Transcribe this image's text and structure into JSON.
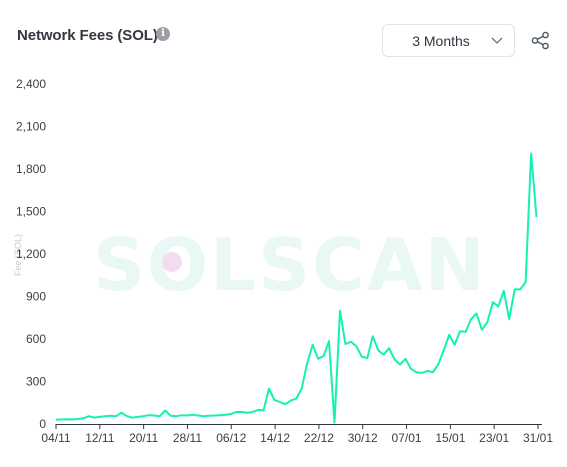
{
  "header": {
    "title": "Network Fees (SOL)",
    "info_icon": "info-icon",
    "period": {
      "selected": "3 Months",
      "icon": "chevron-down-icon"
    },
    "share_icon": "share-icon"
  },
  "watermark": {
    "text": "SOLSCAN",
    "color": "#e9f8f4",
    "dot_color": "#f4dcf0"
  },
  "chart_data": {
    "type": "line",
    "title": "Network Fees (SOL)",
    "xlabel": "",
    "ylabel": "Fee (SOL)",
    "ylim": [
      0,
      2400
    ],
    "yticks": [
      0,
      300,
      600,
      900,
      1200,
      1500,
      1800,
      2100,
      2400
    ],
    "ytick_labels": [
      "0",
      "300",
      "600",
      "900",
      "1,200",
      "1,500",
      "1,800",
      "2,100",
      "2,400"
    ],
    "xtick_labels": [
      "04/11",
      "12/11",
      "20/11",
      "28/11",
      "06/12",
      "14/12",
      "22/12",
      "30/12",
      "07/01",
      "15/01",
      "23/01",
      "31/01"
    ],
    "x_range": [
      "2023-11-04",
      "2024-02-01"
    ],
    "grid": false,
    "line_color": "#14f1b2",
    "axis_color": "#2f3640",
    "series": [
      {
        "name": "",
        "points": [
          [
            "2023-11-04",
            30
          ],
          [
            "2023-11-05",
            32
          ],
          [
            "2023-11-06",
            33
          ],
          [
            "2023-11-07",
            32
          ],
          [
            "2023-11-08",
            35
          ],
          [
            "2023-11-09",
            40
          ],
          [
            "2023-11-10",
            55
          ],
          [
            "2023-11-11",
            45
          ],
          [
            "2023-11-12",
            50
          ],
          [
            "2023-11-13",
            55
          ],
          [
            "2023-11-14",
            58
          ],
          [
            "2023-11-15",
            55
          ],
          [
            "2023-11-16",
            80
          ],
          [
            "2023-11-17",
            55
          ],
          [
            "2023-11-18",
            45
          ],
          [
            "2023-11-19",
            50
          ],
          [
            "2023-11-20",
            55
          ],
          [
            "2023-11-21",
            62
          ],
          [
            "2023-11-22",
            60
          ],
          [
            "2023-11-23",
            55
          ],
          [
            "2023-11-24",
            95
          ],
          [
            "2023-11-25",
            58
          ],
          [
            "2023-11-26",
            55
          ],
          [
            "2023-11-27",
            62
          ],
          [
            "2023-11-28",
            60
          ],
          [
            "2023-11-29",
            65
          ],
          [
            "2023-11-30",
            60
          ],
          [
            "2023-12-01",
            55
          ],
          [
            "2023-12-02",
            58
          ],
          [
            "2023-12-03",
            60
          ],
          [
            "2023-12-04",
            62
          ],
          [
            "2023-12-05",
            65
          ],
          [
            "2023-12-06",
            70
          ],
          [
            "2023-12-07",
            85
          ],
          [
            "2023-12-08",
            85
          ],
          [
            "2023-12-09",
            80
          ],
          [
            "2023-12-10",
            85
          ],
          [
            "2023-12-11",
            100
          ],
          [
            "2023-12-12",
            95
          ],
          [
            "2023-12-13",
            250
          ],
          [
            "2023-12-14",
            170
          ],
          [
            "2023-12-15",
            155
          ],
          [
            "2023-12-16",
            140
          ],
          [
            "2023-12-17",
            165
          ],
          [
            "2023-12-18",
            180
          ],
          [
            "2023-12-19",
            250
          ],
          [
            "2023-12-20",
            430
          ],
          [
            "2023-12-21",
            560
          ],
          [
            "2023-12-22",
            460
          ],
          [
            "2023-12-23",
            480
          ],
          [
            "2023-12-24",
            585
          ],
          [
            "2023-12-25",
            10
          ],
          [
            "2023-12-26",
            800
          ],
          [
            "2023-12-27",
            565
          ],
          [
            "2023-12-28",
            580
          ],
          [
            "2023-12-29",
            550
          ],
          [
            "2023-12-30",
            475
          ],
          [
            "2023-12-31",
            465
          ],
          [
            "2024-01-01",
            620
          ],
          [
            "2024-01-02",
            520
          ],
          [
            "2024-01-03",
            490
          ],
          [
            "2024-01-04",
            535
          ],
          [
            "2024-01-05",
            455
          ],
          [
            "2024-01-06",
            420
          ],
          [
            "2024-01-07",
            460
          ],
          [
            "2024-01-08",
            390
          ],
          [
            "2024-01-09",
            365
          ],
          [
            "2024-01-10",
            360
          ],
          [
            "2024-01-11",
            375
          ],
          [
            "2024-01-12",
            365
          ],
          [
            "2024-01-13",
            420
          ],
          [
            "2024-01-14",
            520
          ],
          [
            "2024-01-15",
            630
          ],
          [
            "2024-01-16",
            560
          ],
          [
            "2024-01-17",
            655
          ],
          [
            "2024-01-18",
            650
          ],
          [
            "2024-01-19",
            740
          ],
          [
            "2024-01-20",
            780
          ],
          [
            "2024-01-21",
            665
          ],
          [
            "2024-01-22",
            720
          ],
          [
            "2024-01-23",
            860
          ],
          [
            "2024-01-24",
            830
          ],
          [
            "2024-01-25",
            940
          ],
          [
            "2024-01-26",
            740
          ],
          [
            "2024-01-27",
            950
          ],
          [
            "2024-01-28",
            950
          ],
          [
            "2024-01-29",
            1000
          ],
          [
            "2024-01-30",
            1910
          ],
          [
            "2024-01-31",
            1460
          ]
        ]
      }
    ]
  }
}
